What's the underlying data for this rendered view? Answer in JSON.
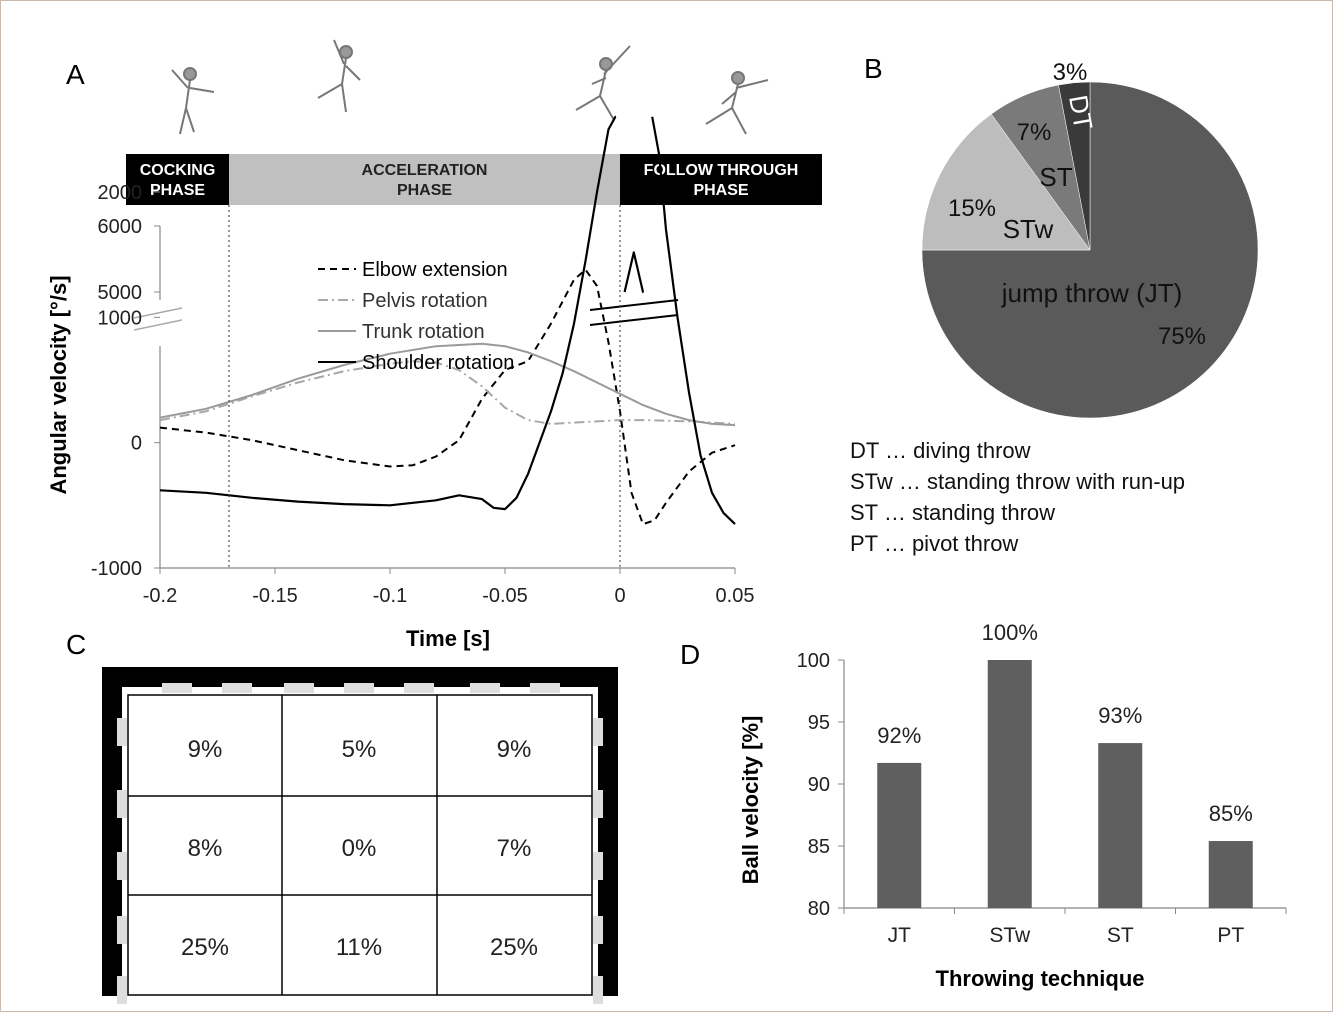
{
  "panels": {
    "a": "A",
    "b": "B",
    "c": "C",
    "d": "D"
  },
  "colors": {
    "dark": "#000000",
    "pie_jt": "#5a5a5a",
    "pie_stw": "#bdbdbd",
    "pie_st": "#7a7a7a",
    "pie_dt": "#3a3a3a",
    "bar": "#5f5f5f",
    "trunk": "#9a9a9a",
    "pelvis": "#a8a8a8",
    "phase_dark": "#000000",
    "phase_light": "#c0c0c0"
  },
  "chart_data": [
    {
      "type": "line",
      "panel": "A",
      "phases": [
        {
          "line1": "COCKING",
          "line2": "PHASE",
          "x_start": -0.2,
          "x_end": -0.17,
          "style": "dark"
        },
        {
          "line1": "ACCELERATION",
          "line2": "PHASE",
          "x_start": -0.17,
          "x_end": 0,
          "style": "light"
        },
        {
          "line1": "FOLLOW THROUGH",
          "line2": "PHASE",
          "x_start": 0,
          "x_end": 0.09,
          "style": "dark"
        }
      ],
      "phase_boundaries": [
        -0.17,
        0
      ],
      "xlabel": "Time [s]",
      "ylabel": "Angular velocity [°/s]",
      "xlim": [
        -0.2,
        0.05
      ],
      "ylim": [
        -1000,
        2600
      ],
      "axis_break": {
        "from": 2600,
        "to": 4800
      },
      "x_ticks": [
        -0.2,
        -0.15,
        -0.1,
        -0.05,
        0,
        0.05
      ],
      "x_tick_labels": [
        "-0.2",
        "-0.15",
        "-0.1",
        "-0.05",
        "0",
        "0.05"
      ],
      "y_ticks": [
        -1000,
        0,
        1000,
        2000,
        5000,
        6000
      ],
      "y_tick_labels": [
        "-1000",
        "0",
        "1000",
        "2000",
        "5000",
        "6000"
      ],
      "series": [
        {
          "name": "Elbow extension",
          "style": "dashed",
          "x": [
            -0.2,
            -0.18,
            -0.16,
            -0.14,
            -0.12,
            -0.1,
            -0.09,
            -0.08,
            -0.07,
            -0.06,
            -0.05,
            -0.04,
            -0.03,
            -0.02,
            -0.015,
            -0.01,
            -0.005,
            0,
            0.005,
            0.01,
            0.015,
            0.02,
            0.03,
            0.04,
            0.05
          ],
          "y": [
            120,
            80,
            20,
            -60,
            -140,
            -190,
            -180,
            -110,
            20,
            350,
            580,
            650,
            950,
            1300,
            1380,
            1250,
            800,
            250,
            -400,
            -650,
            -620,
            -480,
            -230,
            -80,
            -20
          ]
        },
        {
          "name": "Pelvis rotation",
          "style": "dashdot",
          "x": [
            -0.2,
            -0.18,
            -0.16,
            -0.14,
            -0.12,
            -0.1,
            -0.09,
            -0.08,
            -0.07,
            -0.06,
            -0.05,
            -0.04,
            -0.03,
            -0.02,
            -0.01,
            0,
            0.01,
            0.02,
            0.03,
            0.04,
            0.05
          ],
          "y": [
            180,
            250,
            370,
            480,
            570,
            630,
            650,
            640,
            580,
            450,
            280,
            180,
            150,
            160,
            170,
            180,
            180,
            175,
            170,
            160,
            150
          ]
        },
        {
          "name": "Trunk rotation",
          "style": "solid-gray",
          "x": [
            -0.2,
            -0.18,
            -0.16,
            -0.14,
            -0.12,
            -0.1,
            -0.08,
            -0.06,
            -0.05,
            -0.04,
            -0.03,
            -0.02,
            -0.01,
            0,
            0.01,
            0.02,
            0.03,
            0.04,
            0.05
          ],
          "y": [
            200,
            270,
            380,
            510,
            620,
            710,
            770,
            790,
            770,
            720,
            650,
            570,
            480,
            390,
            300,
            230,
            180,
            150,
            140
          ]
        },
        {
          "name": "Shoulder rotation",
          "style": "solid-black",
          "x": [
            -0.2,
            -0.18,
            -0.16,
            -0.14,
            -0.12,
            -0.1,
            -0.08,
            -0.07,
            -0.06,
            -0.055,
            -0.05,
            -0.045,
            -0.04,
            -0.035,
            -0.03,
            -0.025,
            -0.02,
            -0.015,
            -0.01,
            -0.005,
            -0.002,
            0.002,
            0.006,
            0.01,
            0.014,
            0.017,
            0.02,
            0.025,
            0.03,
            0.035,
            0.04,
            0.045,
            0.05
          ],
          "y": [
            -380,
            -400,
            -440,
            -470,
            -490,
            -500,
            -460,
            -420,
            -450,
            -520,
            -530,
            -440,
            -250,
            0,
            250,
            550,
            950,
            1450,
            2000,
            2500,
            2600,
            5000,
            5600,
            5000,
            2600,
            2300,
            1700,
            1000,
            400,
            -100,
            -400,
            -560,
            -650
          ]
        }
      ]
    },
    {
      "type": "pie",
      "panel": "B",
      "slices": [
        {
          "label": "jump throw (JT)",
          "pct_label": "75%",
          "value": 75,
          "color": "#5a5a5a"
        },
        {
          "label": "STw",
          "pct_label": "15%",
          "value": 15,
          "color": "#bdbdbd"
        },
        {
          "label": "ST",
          "pct_label": "7%",
          "value": 7,
          "color": "#7a7a7a"
        },
        {
          "label": "DT",
          "pct_label": "3%",
          "value": 3,
          "color": "#3a3a3a"
        }
      ],
      "legend": [
        "DT … diving throw",
        "STw … standing throw with run-up",
        "ST … standing throw",
        "PT … pivot throw"
      ]
    },
    {
      "type": "table",
      "panel": "C",
      "rows": [
        [
          "9%",
          "5%",
          "9%"
        ],
        [
          "8%",
          "0%",
          "7%"
        ],
        [
          "25%",
          "11%",
          "25%"
        ]
      ]
    },
    {
      "type": "bar",
      "panel": "D",
      "categories": [
        "JT",
        "STw",
        "ST",
        "PT"
      ],
      "values": [
        91.7,
        100,
        93.3,
        85.4
      ],
      "value_labels": [
        "92%",
        "100%",
        "93%",
        "85%"
      ],
      "xlabel": "Throwing technique",
      "ylabel": "Ball velocity [%]",
      "ylim": [
        80,
        100
      ],
      "y_ticks": [
        80,
        85,
        90,
        95,
        100
      ],
      "y_tick_labels": [
        "80",
        "85",
        "90",
        "95",
        "100"
      ]
    }
  ]
}
